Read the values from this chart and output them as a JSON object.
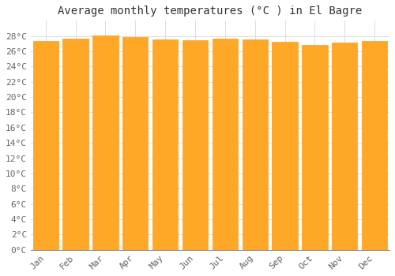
{
  "title": "Average monthly temperatures (°C ) in El Bagre",
  "months": [
    "Jan",
    "Feb",
    "Mar",
    "Apr",
    "May",
    "Jun",
    "Jul",
    "Aug",
    "Sep",
    "Oct",
    "Nov",
    "Dec"
  ],
  "values": [
    27.3,
    27.7,
    28.1,
    27.85,
    27.5,
    27.4,
    27.65,
    27.55,
    27.2,
    26.85,
    27.15,
    27.35
  ],
  "bar_color": "#FFA726",
  "bar_edge_color": "#FF8C00",
  "ylim": [
    0,
    30
  ],
  "yticks": [
    0,
    2,
    4,
    6,
    8,
    10,
    12,
    14,
    16,
    18,
    20,
    22,
    24,
    26,
    28
  ],
  "background_color": "#FFFFFF",
  "plot_bg_color": "#FFFFFF",
  "grid_color": "#DDDDDD",
  "title_fontsize": 10,
  "tick_fontsize": 8
}
